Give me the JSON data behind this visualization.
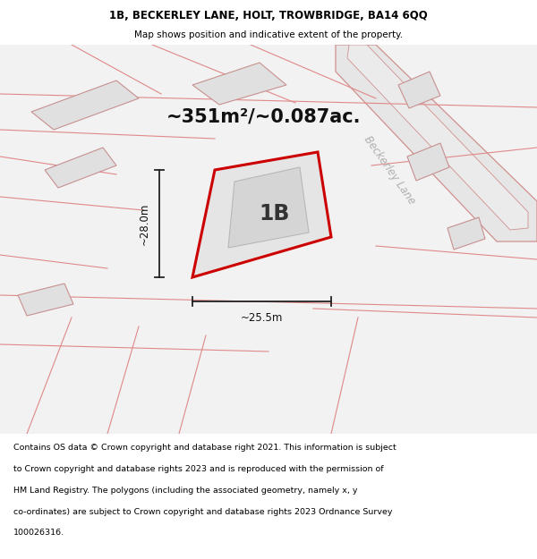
{
  "title_line1": "1B, BECKERLEY LANE, HOLT, TROWBRIDGE, BA14 6QQ",
  "title_line2": "Map shows position and indicative extent of the property.",
  "area_text": "~351m²/~0.087ac.",
  "label_1b": "1B",
  "dim_width": "~25.5m",
  "dim_height": "~28.0m",
  "road_label": "Beckerley Lane",
  "footer_text": "Contains OS data © Crown copyright and database right 2021. This information is subject to Crown copyright and database rights 2023 and is reproduced with the permission of HM Land Registry. The polygons (including the associated geometry, namely x, y co-ordinates) are subject to Crown copyright and database rights 2023 Ordnance Survey 100026316.",
  "bg_color": "#ffffff",
  "map_bg": "#f0f0f0",
  "plot_fill": "#e8e8e8",
  "plot_edge_color": "#cc0000",
  "dim_line_color": "#222222",
  "title_color": "#000000",
  "footer_color": "#000000",
  "poly_fill": "#e2e2e2",
  "poly_edge": "#d08888",
  "road_fill": "#e8e8e8",
  "road_edge": "#d09090",
  "inner_fill": "#d8d8d8",
  "inner_edge": "#bbbbbb"
}
